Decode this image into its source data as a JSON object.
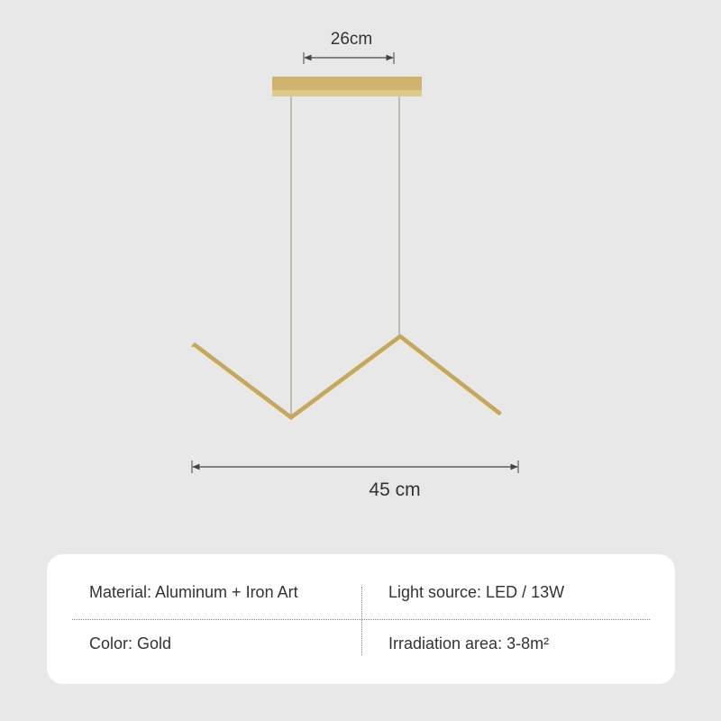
{
  "dimensions": {
    "top_width": "26cm",
    "total_width": "45 cm"
  },
  "specs": {
    "material": "Material: Aluminum + Iron Art",
    "light_source": "Light source: LED / 13W",
    "color": "Color: Gold",
    "irradiation_area": "Irradiation area: 3-8m²"
  },
  "colors": {
    "background": "#e8e8e8",
    "gold": "#c9ad6a",
    "card": "#ffffff"
  }
}
